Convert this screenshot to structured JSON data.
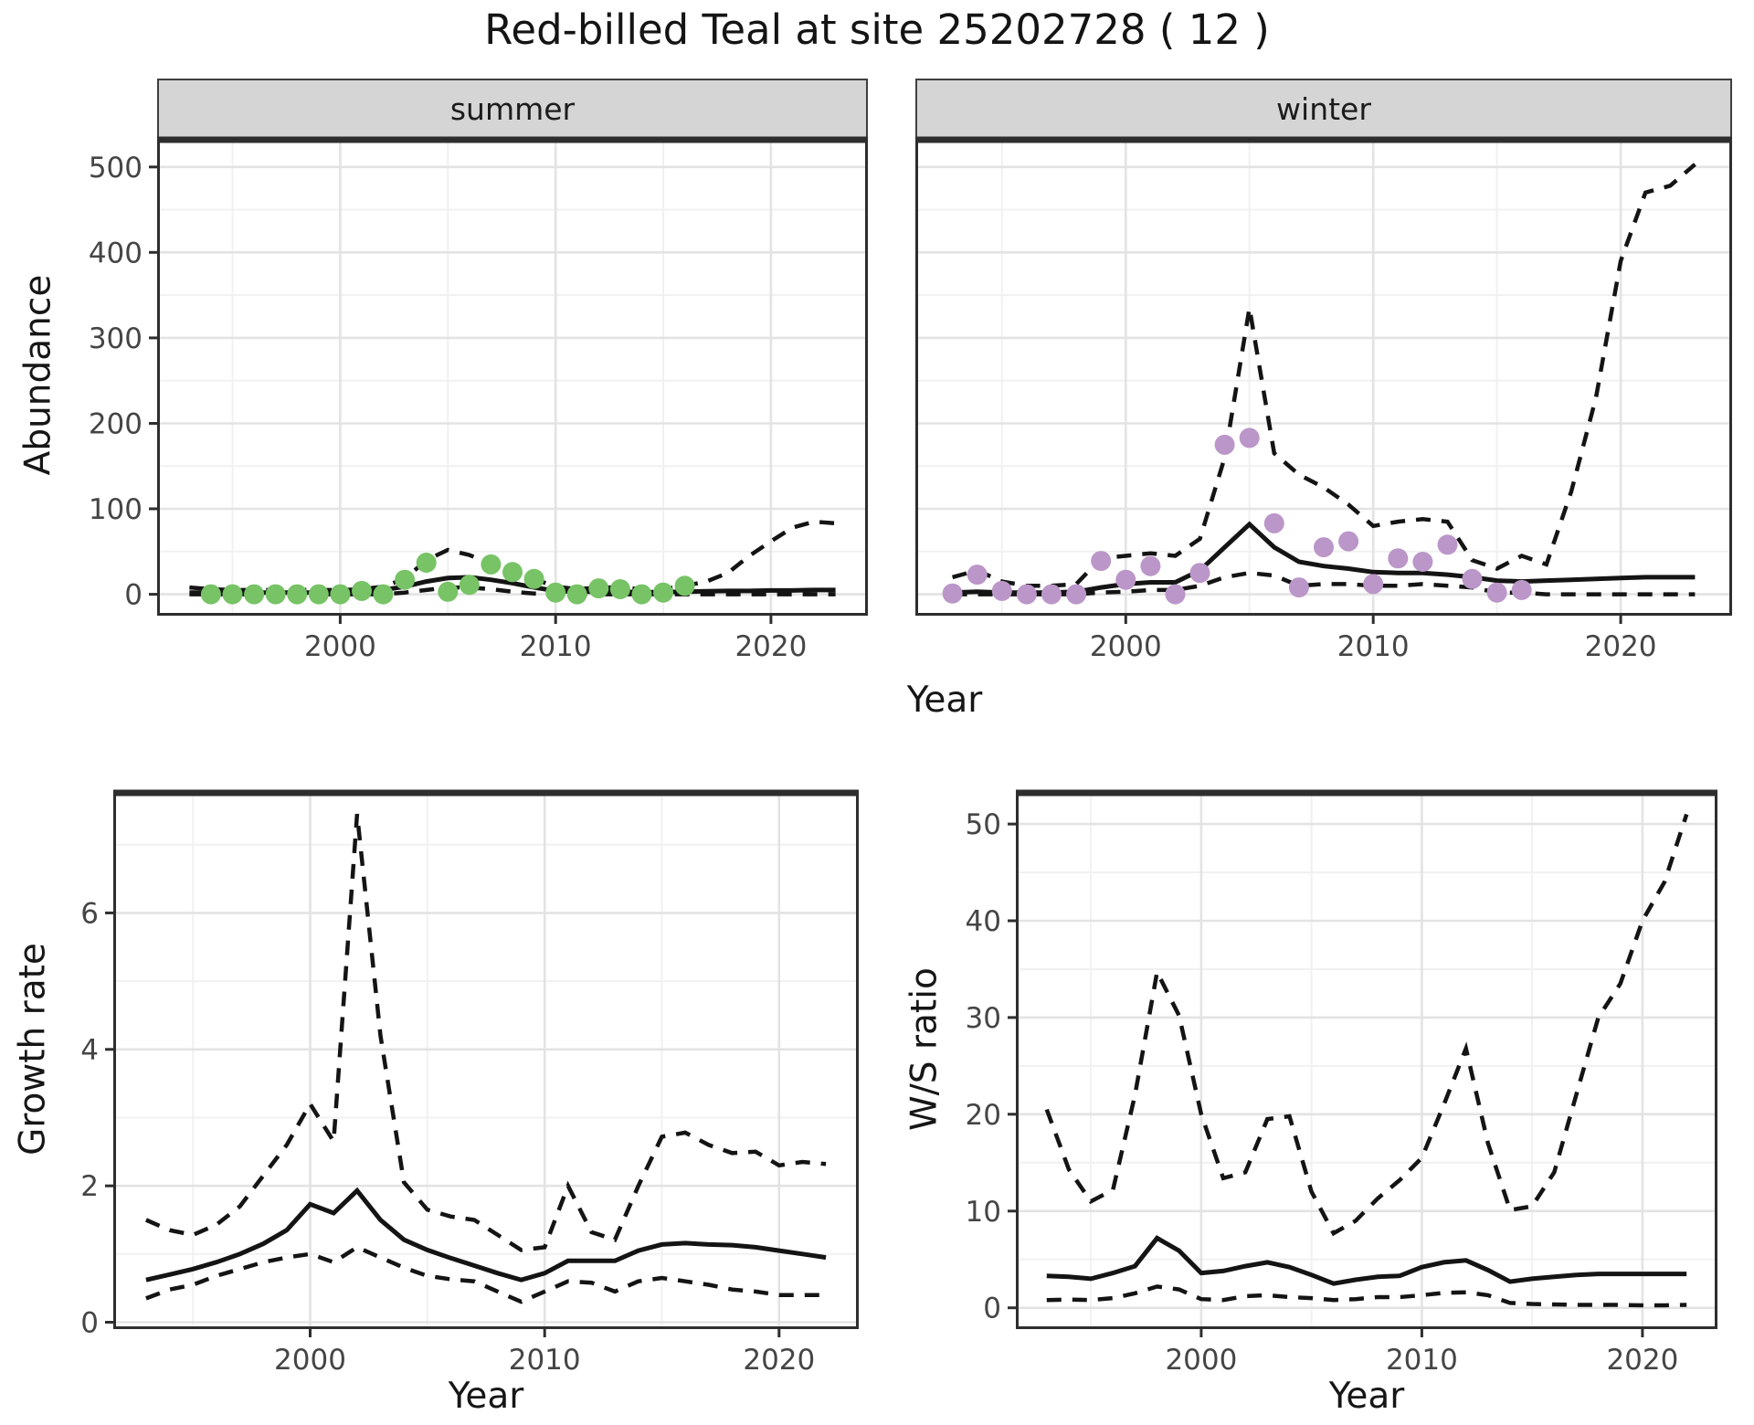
{
  "title": "Red-billed Teal at site 25202728 ( 12 )",
  "facets": [
    "summer",
    "winter"
  ],
  "axes": {
    "y_top": "Abundance",
    "y_growth": "Growth rate",
    "y_ws": "W/S ratio",
    "x_top": "Year",
    "x_growth": "Year",
    "x_ws": "Year"
  },
  "colors": {
    "summer_point": "#77C366",
    "winter_point": "#BB96C8",
    "line": "#141414",
    "panel_border": "#2e2e2e",
    "grid_major": "#e3e3e3",
    "grid_minor": "#f1f1f1",
    "strip_bg": "#d5d5d5",
    "tick_text": "#454545"
  },
  "chart_data": [
    {
      "id": "abundance_summer",
      "type": "line",
      "facet": "summer",
      "xlabel": "Year",
      "ylabel": "Abundance",
      "xlim": [
        1991.5,
        2024.5
      ],
      "ylim": [
        -25,
        535
      ],
      "xticks": [
        2000,
        2010,
        2020
      ],
      "yticks": [
        0,
        100,
        200,
        300,
        400,
        500
      ],
      "xminor": [
        1995,
        2005,
        2015
      ],
      "yminor": [
        50,
        150,
        250,
        350,
        450
      ],
      "x": [
        1993,
        1994,
        1995,
        1996,
        1997,
        1998,
        1999,
        2000,
        2001,
        2002,
        2003,
        2004,
        2005,
        2006,
        2007,
        2008,
        2009,
        2010,
        2011,
        2012,
        2013,
        2014,
        2015,
        2016,
        2017,
        2018,
        2019,
        2020,
        2021,
        2022,
        2023
      ],
      "series": [
        {
          "name": "median",
          "style": "solid",
          "values": [
            2,
            2,
            2,
            2,
            2,
            2,
            2,
            2,
            3,
            5,
            9,
            15,
            19,
            20,
            17,
            13,
            8,
            4,
            3,
            3,
            3,
            2.5,
            2.5,
            3,
            3.5,
            4,
            4,
            4.5,
            4.5,
            5,
            5
          ]
        },
        {
          "name": "upper_ci",
          "style": "dashed",
          "values": [
            8,
            6,
            5,
            5,
            5,
            5,
            5,
            5,
            6,
            9,
            18,
            40,
            52,
            46,
            36,
            27,
            18,
            9,
            6,
            8,
            8,
            6,
            6,
            10,
            15,
            25,
            45,
            62,
            78,
            85,
            83
          ]
        },
        {
          "name": "lower_ci",
          "style": "dashed",
          "values": [
            0,
            0,
            0,
            0,
            0,
            0,
            0,
            0,
            0,
            0,
            2,
            5,
            8,
            8,
            6,
            3,
            1,
            0,
            0,
            0,
            0,
            0,
            0,
            0,
            0,
            0,
            0,
            0,
            0,
            0,
            0
          ]
        }
      ],
      "points": {
        "color": "#77C366",
        "years": [
          1994,
          1995,
          1996,
          1997,
          1998,
          1999,
          2000,
          2001,
          2002,
          2003,
          2004,
          2005,
          2006,
          2007,
          2008,
          2009,
          2010,
          2011,
          2012,
          2013,
          2014,
          2015,
          2016
        ],
        "values": [
          0,
          0,
          0,
          0,
          0,
          0,
          0,
          4,
          0,
          17,
          37,
          3,
          11,
          35,
          26,
          18,
          2,
          0,
          7,
          6,
          0,
          2,
          10
        ]
      }
    },
    {
      "id": "abundance_winter",
      "type": "line",
      "facet": "winter",
      "xlabel": "Year",
      "ylabel": "Abundance",
      "xlim": [
        1991.5,
        2024.5
      ],
      "ylim": [
        -25,
        535
      ],
      "xticks": [
        2000,
        2010,
        2020
      ],
      "yticks": [
        0,
        100,
        200,
        300,
        400,
        500
      ],
      "xminor": [
        1995,
        2005,
        2015
      ],
      "yminor": [
        50,
        150,
        250,
        350,
        450
      ],
      "x": [
        1993,
        1994,
        1995,
        1996,
        1997,
        1998,
        1999,
        2000,
        2001,
        2002,
        2003,
        2004,
        2005,
        2006,
        2007,
        2008,
        2009,
        2010,
        2011,
        2012,
        2013,
        2014,
        2015,
        2016,
        2017,
        2018,
        2019,
        2020,
        2021,
        2022,
        2023
      ],
      "series": [
        {
          "name": "median",
          "style": "solid",
          "values": [
            2,
            3,
            2,
            2,
            2,
            3,
            8,
            12,
            14,
            14,
            28,
            55,
            82,
            55,
            38,
            33,
            30,
            26,
            25,
            25,
            23,
            20,
            16,
            15,
            16,
            17,
            18,
            19,
            20,
            20,
            20
          ]
        },
        {
          "name": "upper_ci",
          "style": "dashed",
          "values": [
            20,
            28,
            15,
            10,
            10,
            12,
            42,
            45,
            48,
            45,
            65,
            160,
            335,
            165,
            140,
            125,
            105,
            80,
            85,
            88,
            85,
            40,
            30,
            45,
            35,
            120,
            230,
            390,
            470,
            478,
            503
          ]
        },
        {
          "name": "lower_ci",
          "style": "dashed",
          "values": [
            0,
            0,
            0,
            0,
            0,
            0,
            2,
            3,
            5,
            5,
            10,
            20,
            25,
            22,
            10,
            12,
            12,
            10,
            10,
            12,
            10,
            8,
            2,
            2,
            0,
            0,
            0,
            0,
            0,
            0,
            0
          ]
        }
      ],
      "points": {
        "color": "#BB96C8",
        "years": [
          1993,
          1994,
          1995,
          1996,
          1997,
          1998,
          1999,
          2000,
          2001,
          2002,
          2003,
          2004,
          2005,
          2006,
          2007,
          2008,
          2009,
          2010,
          2011,
          2012,
          2013,
          2014,
          2015,
          2016
        ],
        "values": [
          1,
          23,
          4,
          0,
          0,
          0,
          39,
          17,
          33,
          0,
          25,
          175,
          183,
          83,
          8,
          55,
          62,
          12,
          42,
          38,
          58,
          18,
          2,
          5
        ]
      }
    },
    {
      "id": "growth_rate",
      "type": "line",
      "facet": null,
      "xlabel": "Year",
      "ylabel": "Growth rate",
      "xlim": [
        1991.6,
        2023.4
      ],
      "ylim": [
        -0.1,
        7.8
      ],
      "xticks": [
        2000,
        2010,
        2020
      ],
      "yticks": [
        0,
        2,
        4,
        6
      ],
      "xminor": [
        1995,
        2005,
        2015
      ],
      "yminor": [
        1,
        3,
        5,
        7
      ],
      "x": [
        1993,
        1994,
        1995,
        1996,
        1997,
        1998,
        1999,
        2000,
        2001,
        2002,
        2003,
        2004,
        2005,
        2006,
        2007,
        2008,
        2009,
        2010,
        2011,
        2012,
        2013,
        2014,
        2015,
        2016,
        2017,
        2018,
        2019,
        2020,
        2021,
        2022
      ],
      "series": [
        {
          "name": "median",
          "style": "solid",
          "values": [
            0.62,
            0.7,
            0.78,
            0.88,
            1.0,
            1.15,
            1.35,
            1.73,
            1.6,
            1.93,
            1.5,
            1.21,
            1.06,
            0.94,
            0.83,
            0.72,
            0.62,
            0.72,
            0.9,
            0.9,
            0.9,
            1.05,
            1.14,
            1.16,
            1.14,
            1.13,
            1.1,
            1.05,
            1.0,
            0.95
          ]
        },
        {
          "name": "upper_ci",
          "style": "dashed",
          "values": [
            1.5,
            1.35,
            1.28,
            1.43,
            1.7,
            2.15,
            2.6,
            3.2,
            2.65,
            7.45,
            4.2,
            2.05,
            1.65,
            1.55,
            1.5,
            1.28,
            1.06,
            1.1,
            2.0,
            1.32,
            1.21,
            2.0,
            2.72,
            2.78,
            2.6,
            2.48,
            2.5,
            2.3,
            2.35,
            2.32
          ]
        },
        {
          "name": "lower_ci",
          "style": "dashed",
          "values": [
            0.35,
            0.48,
            0.55,
            0.68,
            0.78,
            0.88,
            0.95,
            1.0,
            0.88,
            1.1,
            0.95,
            0.8,
            0.68,
            0.63,
            0.6,
            0.45,
            0.3,
            0.45,
            0.6,
            0.58,
            0.45,
            0.6,
            0.65,
            0.6,
            0.55,
            0.48,
            0.45,
            0.4,
            0.4,
            0.4
          ]
        }
      ],
      "points": null
    },
    {
      "id": "ws_ratio",
      "type": "line",
      "facet": null,
      "xlabel": "Year",
      "ylabel": "W/S ratio",
      "xlim": [
        1991.6,
        2023.4
      ],
      "ylim": [
        -2.2,
        53.5
      ],
      "xticks": [
        2000,
        2010,
        2020
      ],
      "yticks": [
        0,
        10,
        20,
        30,
        40,
        50
      ],
      "xminor": [
        1995,
        2005,
        2015
      ],
      "yminor": [
        5,
        15,
        25,
        35,
        45
      ],
      "x": [
        1993,
        1994,
        1995,
        1996,
        1997,
        1998,
        1999,
        2000,
        2001,
        2002,
        2003,
        2004,
        2005,
        2006,
        2007,
        2008,
        2009,
        2010,
        2011,
        2012,
        2013,
        2014,
        2015,
        2016,
        2017,
        2018,
        2019,
        2020,
        2021,
        2022
      ],
      "series": [
        {
          "name": "median",
          "style": "solid",
          "values": [
            3.3,
            3.2,
            3.0,
            3.6,
            4.3,
            7.2,
            5.9,
            3.6,
            3.8,
            4.3,
            4.7,
            4.2,
            3.4,
            2.5,
            2.9,
            3.2,
            3.3,
            4.2,
            4.7,
            4.9,
            3.9,
            2.7,
            3.0,
            3.2,
            3.4,
            3.5,
            3.5,
            3.5,
            3.5,
            3.5
          ]
        },
        {
          "name": "upper_ci",
          "style": "dashed",
          "values": [
            20.5,
            14.3,
            11.0,
            12.2,
            22.0,
            34.7,
            30.2,
            20.0,
            13.4,
            14.0,
            19.5,
            19.8,
            12.0,
            7.7,
            9.0,
            11.3,
            13.2,
            15.5,
            21.0,
            26.8,
            17.0,
            10.1,
            10.5,
            14.0,
            22.0,
            30.0,
            33.5,
            40.0,
            44.0,
            51.0
          ]
        },
        {
          "name": "lower_ci",
          "style": "dashed",
          "values": [
            0.8,
            0.85,
            0.8,
            1.0,
            1.5,
            2.2,
            1.9,
            0.9,
            0.8,
            1.2,
            1.3,
            1.1,
            1.0,
            0.8,
            0.9,
            1.1,
            1.1,
            1.3,
            1.55,
            1.6,
            1.3,
            0.5,
            0.4,
            0.35,
            0.3,
            0.3,
            0.3,
            0.25,
            0.25,
            0.3
          ]
        }
      ],
      "points": null
    }
  ]
}
